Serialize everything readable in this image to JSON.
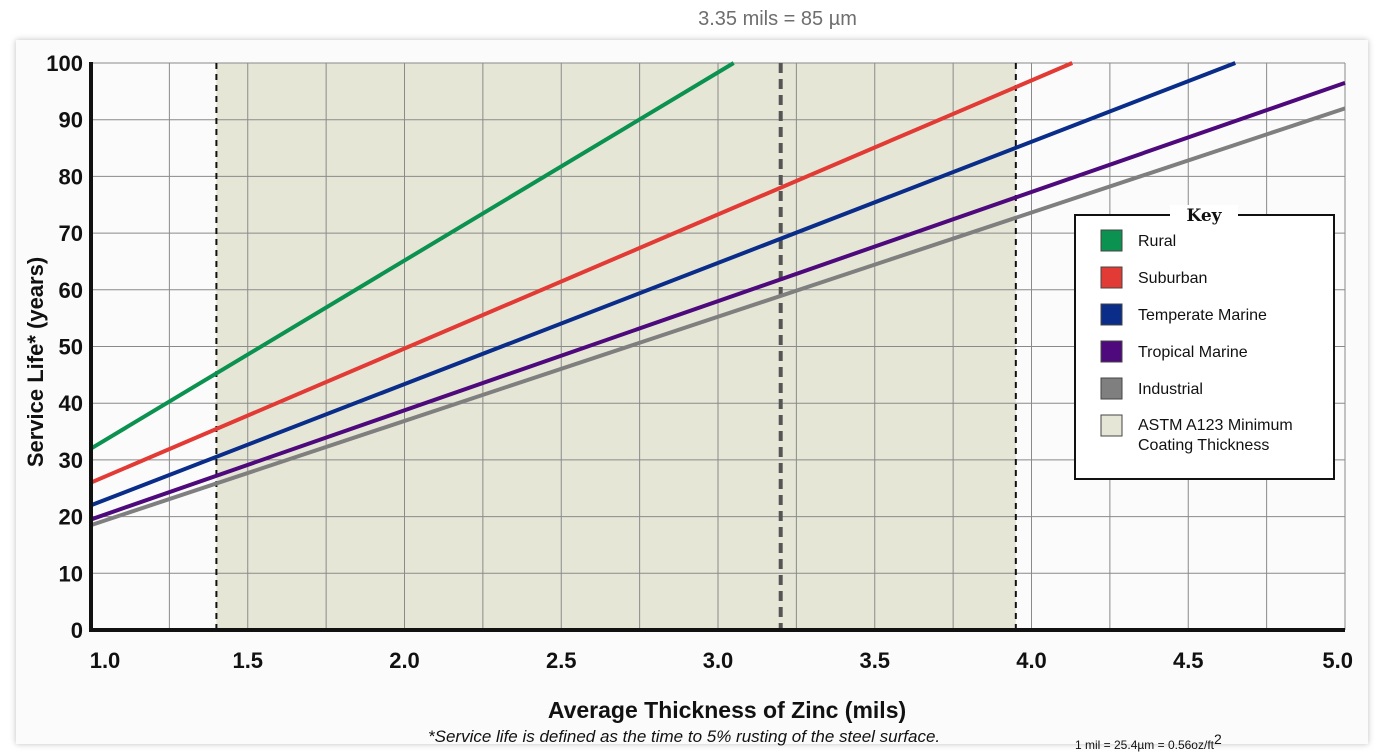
{
  "top_note": "3.35 mils = 85 µm",
  "footnote": "*Service life is defined as the time to 5% rusting of the steel surface.",
  "conversion": {
    "text": "1 mil = 25.4µm = 0.56oz/ft",
    "superscript": "2"
  },
  "chart_data": {
    "type": "line",
    "xlabel": "Average Thickness of Zinc (mils)",
    "ylabel": "Service Life* (years)",
    "xlim": [
      1.0,
      5.0
    ],
    "ylim": [
      0,
      100
    ],
    "x_ticks": [
      "1.0",
      "1.5",
      "2.0",
      "2.5",
      "3.0",
      "3.5",
      "4.0",
      "4.5",
      "5.0"
    ],
    "y_ticks": [
      "0",
      "10",
      "20",
      "30",
      "40",
      "50",
      "60",
      "70",
      "80",
      "90",
      "100"
    ],
    "grid": true,
    "legend": {
      "title": "Key",
      "placement": "right"
    },
    "shaded_region": {
      "name": "ASTM A123 Minimum Coating Thickness",
      "x": [
        1.4,
        3.95
      ],
      "color": "#e6e6d6"
    },
    "reference_lines": [
      {
        "x": 1.4,
        "style": "dashed"
      },
      {
        "x": 3.2,
        "style": "dashed-bold"
      },
      {
        "x": 3.95,
        "style": "dashed"
      }
    ],
    "series": [
      {
        "name": "Rural",
        "color": "#0b9150",
        "x": [
          1.0,
          3.05
        ],
        "y": [
          32,
          100
        ]
      },
      {
        "name": "Suburban",
        "color": "#e23a35",
        "x": [
          1.0,
          4.13
        ],
        "y": [
          26,
          100
        ]
      },
      {
        "name": "Temperate Marine",
        "color": "#0a2d8a",
        "x": [
          1.0,
          4.65
        ],
        "y": [
          22,
          100
        ]
      },
      {
        "name": "Tropical Marine",
        "color": "#4e0a7c",
        "x": [
          1.0,
          5.0
        ],
        "y": [
          19.5,
          96.5
        ]
      },
      {
        "name": "Industrial",
        "color": "#7f7f7f",
        "x": [
          1.0,
          5.0
        ],
        "y": [
          18.5,
          92
        ]
      }
    ]
  }
}
